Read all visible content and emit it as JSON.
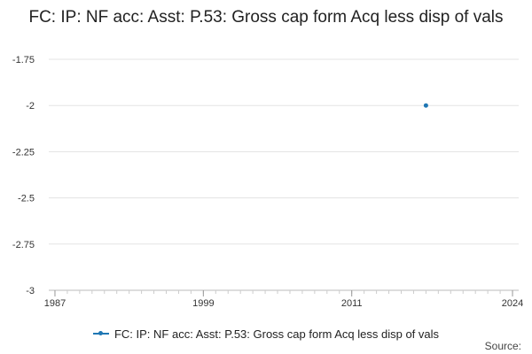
{
  "chart_data": {
    "type": "line",
    "title": "FC: IP: NF acc: Asst: P.53: Gross cap form Acq less disp of vals",
    "xlabel": "",
    "ylabel": "",
    "xlim": [
      1986.5,
      2024.5
    ],
    "ylim": [
      -3,
      -1.75
    ],
    "x_ticks": [
      1987,
      1999,
      2011,
      2024
    ],
    "y_ticks": [
      -1.75,
      -2,
      -2.25,
      -2.5,
      -2.75,
      -3
    ],
    "grid": true,
    "legend_position": "bottom",
    "series": [
      {
        "name": "FC: IP: NF acc: Asst: P.53: Gross cap form Acq less disp of vals",
        "color": "#1f77b4",
        "x": [
          2017
        ],
        "y": [
          -2
        ]
      }
    ]
  },
  "legend_label": "FC: IP: NF acc: Asst: P.53: Gross cap form Acq less disp of vals",
  "source_label": "Source:"
}
